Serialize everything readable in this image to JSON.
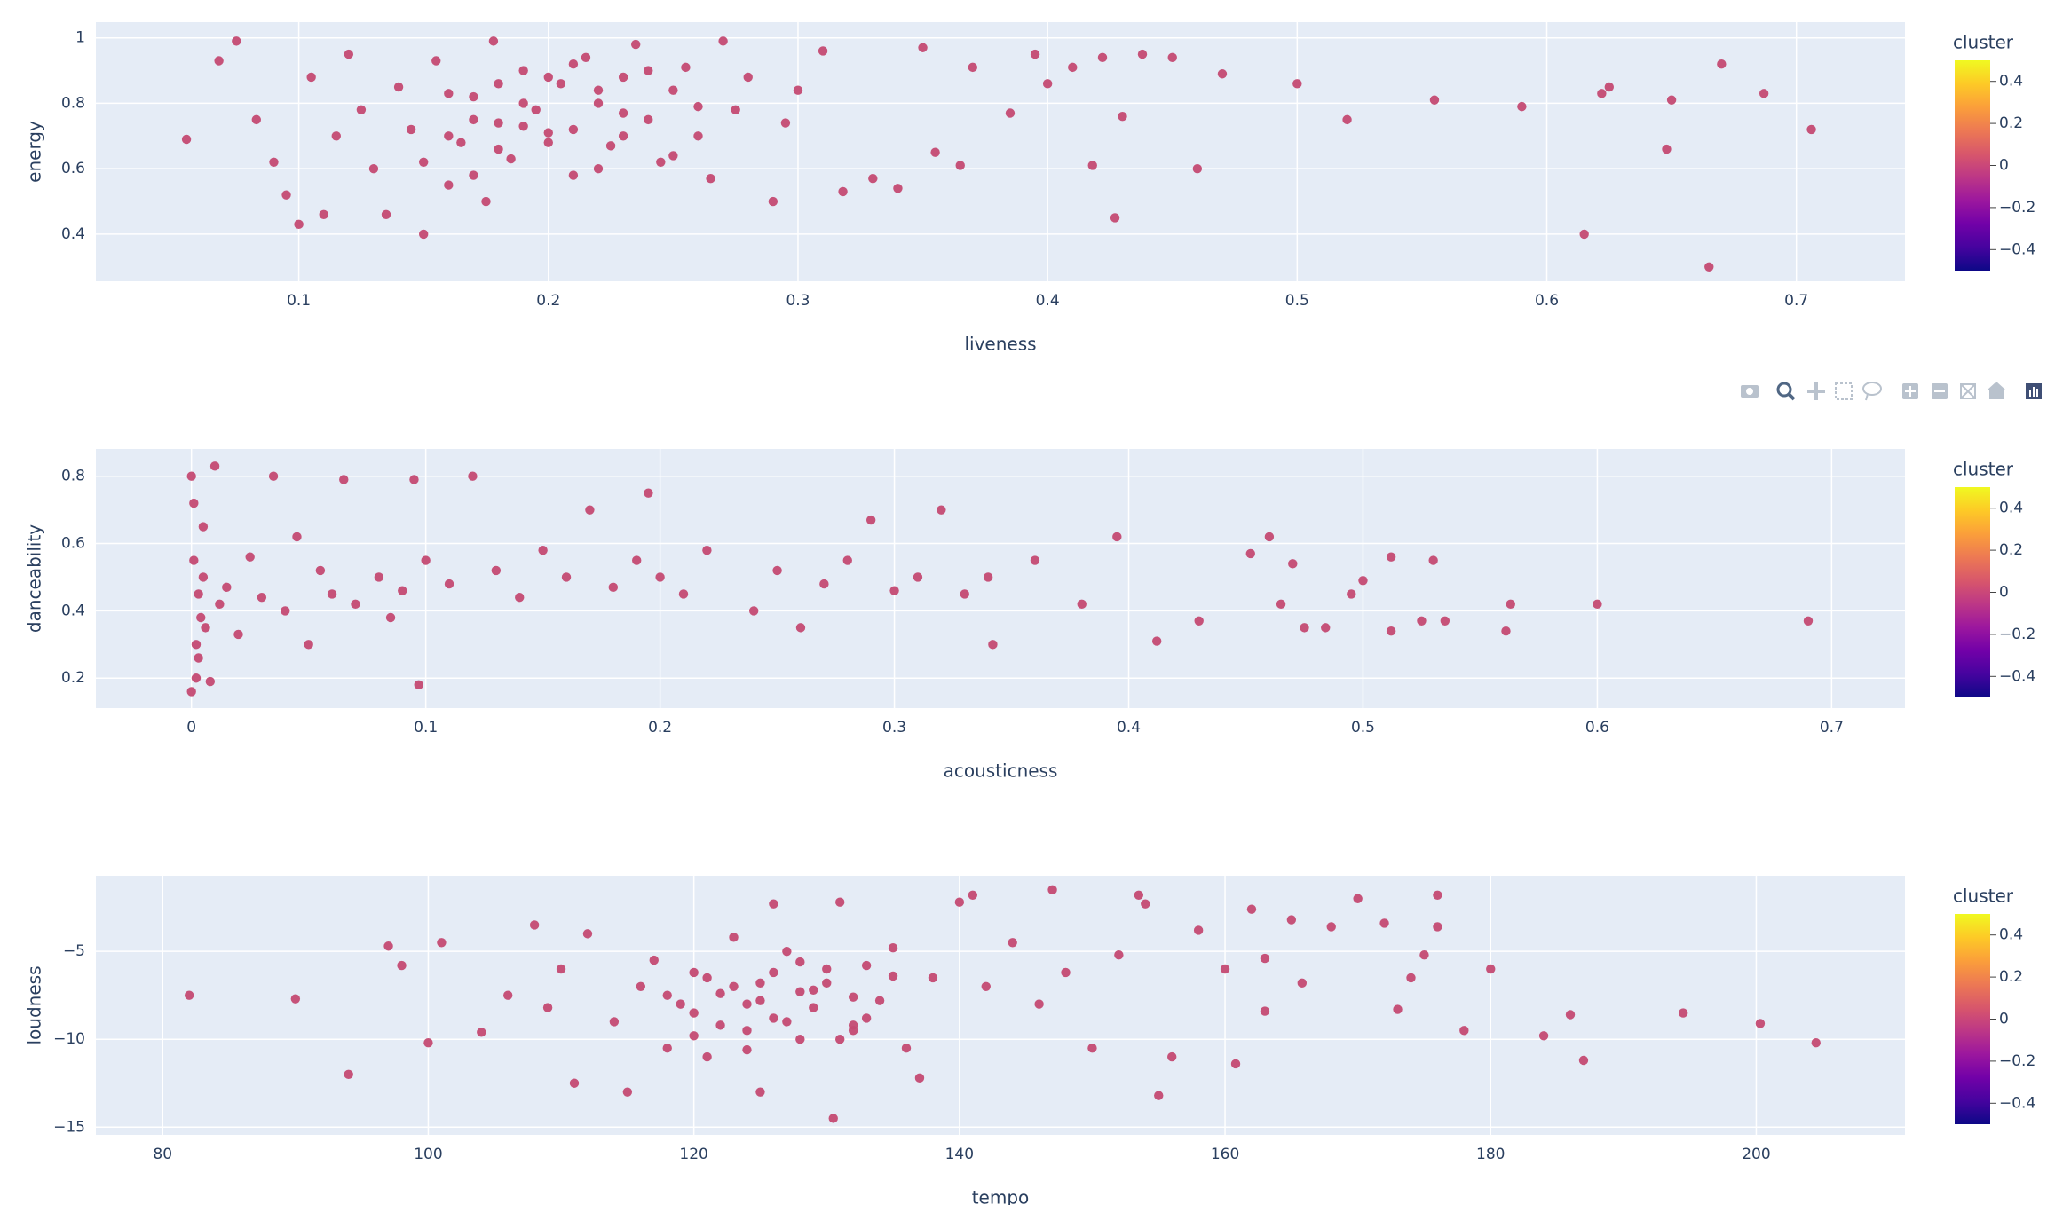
{
  "chart_data": [
    {
      "type": "scatter",
      "x_label": "liveness",
      "y_label": "energy",
      "color": "#c44a72",
      "grid": true,
      "xlim": [
        0.0187,
        0.7435
      ],
      "ylim": [
        0.256,
        1.048
      ],
      "xticks": [
        0.1,
        0.2,
        0.3,
        0.4,
        0.5,
        0.6,
        0.7
      ],
      "yticks": [
        0.4,
        0.6,
        0.8,
        1
      ],
      "x": [
        0.055,
        0.075,
        0.068,
        0.083,
        0.09,
        0.095,
        0.1,
        0.105,
        0.11,
        0.115,
        0.12,
        0.125,
        0.13,
        0.135,
        0.14,
        0.145,
        0.15,
        0.155,
        0.16,
        0.165,
        0.17,
        0.175,
        0.178,
        0.18,
        0.185,
        0.19,
        0.195,
        0.2,
        0.205,
        0.21,
        0.215,
        0.22,
        0.225,
        0.23,
        0.235,
        0.24,
        0.245,
        0.25,
        0.255,
        0.26,
        0.265,
        0.27,
        0.275,
        0.28,
        0.29,
        0.295,
        0.3,
        0.31,
        0.318,
        0.33,
        0.34,
        0.35,
        0.355,
        0.365,
        0.37,
        0.385,
        0.395,
        0.4,
        0.41,
        0.418,
        0.422,
        0.427,
        0.43,
        0.438,
        0.45,
        0.46,
        0.47,
        0.5,
        0.52,
        0.555,
        0.59,
        0.615,
        0.622,
        0.625,
        0.648,
        0.65,
        0.665,
        0.67,
        0.687,
        0.706,
        0.15,
        0.16,
        0.17,
        0.18,
        0.19,
        0.2,
        0.21,
        0.22,
        0.23,
        0.24,
        0.25,
        0.2,
        0.21,
        0.19,
        0.22,
        0.18,
        0.17,
        0.23,
        0.16,
        0.26
      ],
      "y": [
        0.69,
        0.99,
        0.93,
        0.75,
        0.62,
        0.52,
        0.43,
        0.88,
        0.46,
        0.7,
        0.95,
        0.78,
        0.6,
        0.46,
        0.85,
        0.72,
        0.4,
        0.93,
        0.55,
        0.68,
        0.82,
        0.5,
        0.99,
        0.74,
        0.63,
        0.9,
        0.78,
        0.71,
        0.86,
        0.58,
        0.94,
        0.8,
        0.67,
        0.88,
        0.98,
        0.75,
        0.62,
        0.84,
        0.91,
        0.7,
        0.57,
        0.99,
        0.78,
        0.88,
        0.5,
        0.74,
        0.84,
        0.96,
        0.53,
        0.57,
        0.54,
        0.97,
        0.65,
        0.61,
        0.91,
        0.77,
        0.95,
        0.86,
        0.91,
        0.61,
        0.94,
        0.45,
        0.76,
        0.95,
        0.94,
        0.6,
        0.89,
        0.86,
        0.75,
        0.81,
        0.79,
        0.4,
        0.83,
        0.85,
        0.66,
        0.81,
        0.3,
        0.92,
        0.83,
        0.72,
        0.62,
        0.7,
        0.75,
        0.66,
        0.8,
        0.88,
        0.72,
        0.84,
        0.77,
        0.9,
        0.64,
        0.68,
        0.92,
        0.73,
        0.6,
        0.86,
        0.58,
        0.7,
        0.83,
        0.79
      ],
      "colorbar": {
        "title": "cluster",
        "colors": [
          "#0d0887",
          "#46039f",
          "#7201a8",
          "#9c179e",
          "#bd3786",
          "#d8576b",
          "#ed7953",
          "#fb9f3a",
          "#fdca26",
          "#f0f921"
        ],
        "lim": [
          -0.5,
          0.5
        ],
        "ticks": [
          {
            "value": -0.4,
            "label": "−0.4"
          },
          {
            "value": -0.2,
            "label": "−0.2"
          },
          0,
          0.2,
          0.4
        ]
      }
    },
    {
      "type": "scatter",
      "x_label": "acousticness",
      "y_label": "danceability",
      "color": "#c44a72",
      "grid": true,
      "xlim": [
        -0.0408,
        0.7313
      ],
      "ylim": [
        0.111,
        0.881
      ],
      "xticks": [
        0,
        0.1,
        0.2,
        0.3,
        0.4,
        0.5,
        0.6,
        0.7
      ],
      "yticks": [
        0.2,
        0.4,
        0.6,
        0.8
      ],
      "x": [
        0,
        0,
        0.001,
        0.001,
        0.002,
        0.002,
        0.003,
        0.003,
        0.004,
        0.005,
        0.005,
        0.006,
        0.008,
        0.01,
        0.012,
        0.015,
        0.02,
        0.025,
        0.03,
        0.035,
        0.04,
        0.045,
        0.05,
        0.055,
        0.06,
        0.065,
        0.07,
        0.08,
        0.085,
        0.09,
        0.095,
        0.097,
        0.1,
        0.11,
        0.12,
        0.13,
        0.14,
        0.15,
        0.16,
        0.17,
        0.18,
        0.19,
        0.195,
        0.2,
        0.21,
        0.22,
        0.24,
        0.25,
        0.26,
        0.27,
        0.28,
        0.29,
        0.3,
        0.31,
        0.32,
        0.33,
        0.34,
        0.342,
        0.36,
        0.38,
        0.395,
        0.412,
        0.43,
        0.452,
        0.46,
        0.465,
        0.47,
        0.475,
        0.484,
        0.495,
        0.5,
        0.512,
        0.512,
        0.525,
        0.53,
        0.535,
        0.561,
        0.563,
        0.6,
        0.69
      ],
      "y": [
        0.8,
        0.16,
        0.72,
        0.55,
        0.3,
        0.2,
        0.45,
        0.26,
        0.38,
        0.65,
        0.5,
        0.35,
        0.19,
        0.83,
        0.42,
        0.47,
        0.33,
        0.56,
        0.44,
        0.8,
        0.4,
        0.62,
        0.3,
        0.52,
        0.45,
        0.79,
        0.42,
        0.5,
        0.38,
        0.46,
        0.79,
        0.18,
        0.55,
        0.48,
        0.8,
        0.52,
        0.44,
        0.58,
        0.5,
        0.7,
        0.47,
        0.55,
        0.75,
        0.5,
        0.45,
        0.58,
        0.4,
        0.52,
        0.35,
        0.48,
        0.55,
        0.67,
        0.46,
        0.5,
        0.7,
        0.45,
        0.5,
        0.3,
        0.55,
        0.42,
        0.62,
        0.31,
        0.37,
        0.57,
        0.62,
        0.42,
        0.54,
        0.35,
        0.35,
        0.45,
        0.49,
        0.34,
        0.56,
        0.37,
        0.55,
        0.37,
        0.34,
        0.42,
        0.42,
        0.37
      ],
      "colorbar": {
        "title": "cluster",
        "colors": [
          "#0d0887",
          "#46039f",
          "#7201a8",
          "#9c179e",
          "#bd3786",
          "#d8576b",
          "#ed7953",
          "#fb9f3a",
          "#fdca26",
          "#f0f921"
        ],
        "lim": [
          -0.5,
          0.5
        ],
        "ticks": [
          {
            "value": -0.4,
            "label": "−0.4"
          },
          {
            "value": -0.2,
            "label": "−0.2"
          },
          0,
          0.2,
          0.4
        ]
      }
    },
    {
      "type": "scatter",
      "x_label": "tempo",
      "y_label": "loudness",
      "color": "#c44a72",
      "grid": true,
      "xlim": [
        74.97,
        211.2
      ],
      "ylim": [
        -15.44,
        -0.7
      ],
      "xticks": [
        80,
        100,
        120,
        140,
        160,
        180,
        200
      ],
      "yticks": [
        {
          "value": -15,
          "label": "−15"
        },
        {
          "value": -10,
          "label": "−10"
        },
        {
          "value": -5,
          "label": "−5"
        }
      ],
      "x": [
        82,
        90,
        94,
        97,
        98,
        100,
        101,
        104,
        106,
        108,
        109,
        110,
        111,
        112,
        114,
        115,
        116,
        117,
        118,
        119,
        120,
        121,
        122,
        123,
        124,
        125,
        125,
        126,
        126,
        127,
        128,
        129,
        130,
        130.5,
        131,
        132,
        133,
        134,
        135,
        136,
        137,
        138,
        140,
        141,
        142,
        144,
        146,
        147,
        148,
        150,
        152,
        153.5,
        154,
        155,
        156,
        158,
        160,
        160.8,
        162,
        163,
        163,
        165,
        165.8,
        168,
        170,
        172,
        173,
        174,
        175,
        176,
        176,
        178,
        180,
        184,
        186,
        187,
        194.5,
        200.3,
        204.5,
        118,
        120,
        121,
        122,
        123,
        124,
        125,
        126,
        127,
        128,
        129,
        130,
        131,
        132,
        133,
        135,
        120,
        124,
        128,
        132
      ],
      "y": [
        -7.5,
        -7.7,
        -12,
        -4.7,
        -5.8,
        -10.2,
        -4.5,
        -9.6,
        -7.5,
        -3.5,
        -8.2,
        -6,
        -12.5,
        -4,
        -9,
        -13,
        -7,
        -5.5,
        -10.5,
        -8,
        -6.2,
        -11,
        -7.4,
        -4.2,
        -9.5,
        -13,
        -6.8,
        -2.3,
        -8.8,
        -5,
        -10,
        -7.2,
        -6,
        -14.5,
        -2.2,
        -9.2,
        -5.8,
        -7.8,
        -4.8,
        -10.5,
        -12.2,
        -6.5,
        -2.2,
        -1.8,
        -7,
        -4.5,
        -8,
        -1.5,
        -6.2,
        -10.5,
        -5.2,
        -1.8,
        -2.3,
        -13.2,
        -11,
        -3.8,
        -6,
        -11.4,
        -2.6,
        -5.4,
        -8.4,
        -3.2,
        -6.8,
        -3.6,
        -2,
        -3.4,
        -8.3,
        -6.5,
        -5.2,
        -1.8,
        -3.6,
        -9.5,
        -6,
        -9.8,
        -8.6,
        -11.2,
        -8.5,
        -9.1,
        -10.2,
        -7.5,
        -8.5,
        -6.5,
        -9.2,
        -7,
        -8,
        -7.8,
        -6.2,
        -9,
        -7.3,
        -8.2,
        -6.8,
        -10,
        -7.6,
        -8.8,
        -6.4,
        -9.8,
        -10.6,
        -5.6,
        -9.5
      ],
      "colorbar": {
        "title": "cluster",
        "colors": [
          "#0d0887",
          "#46039f",
          "#7201a8",
          "#9c179e",
          "#bd3786",
          "#d8576b",
          "#ed7953",
          "#fb9f3a",
          "#fdca26",
          "#f0f921"
        ],
        "lim": [
          -0.5,
          0.5
        ],
        "ticks": [
          {
            "value": -0.4,
            "label": "−0.4"
          },
          {
            "value": -0.2,
            "label": "−0.2"
          },
          0,
          0.2,
          0.4
        ]
      }
    }
  ]
}
